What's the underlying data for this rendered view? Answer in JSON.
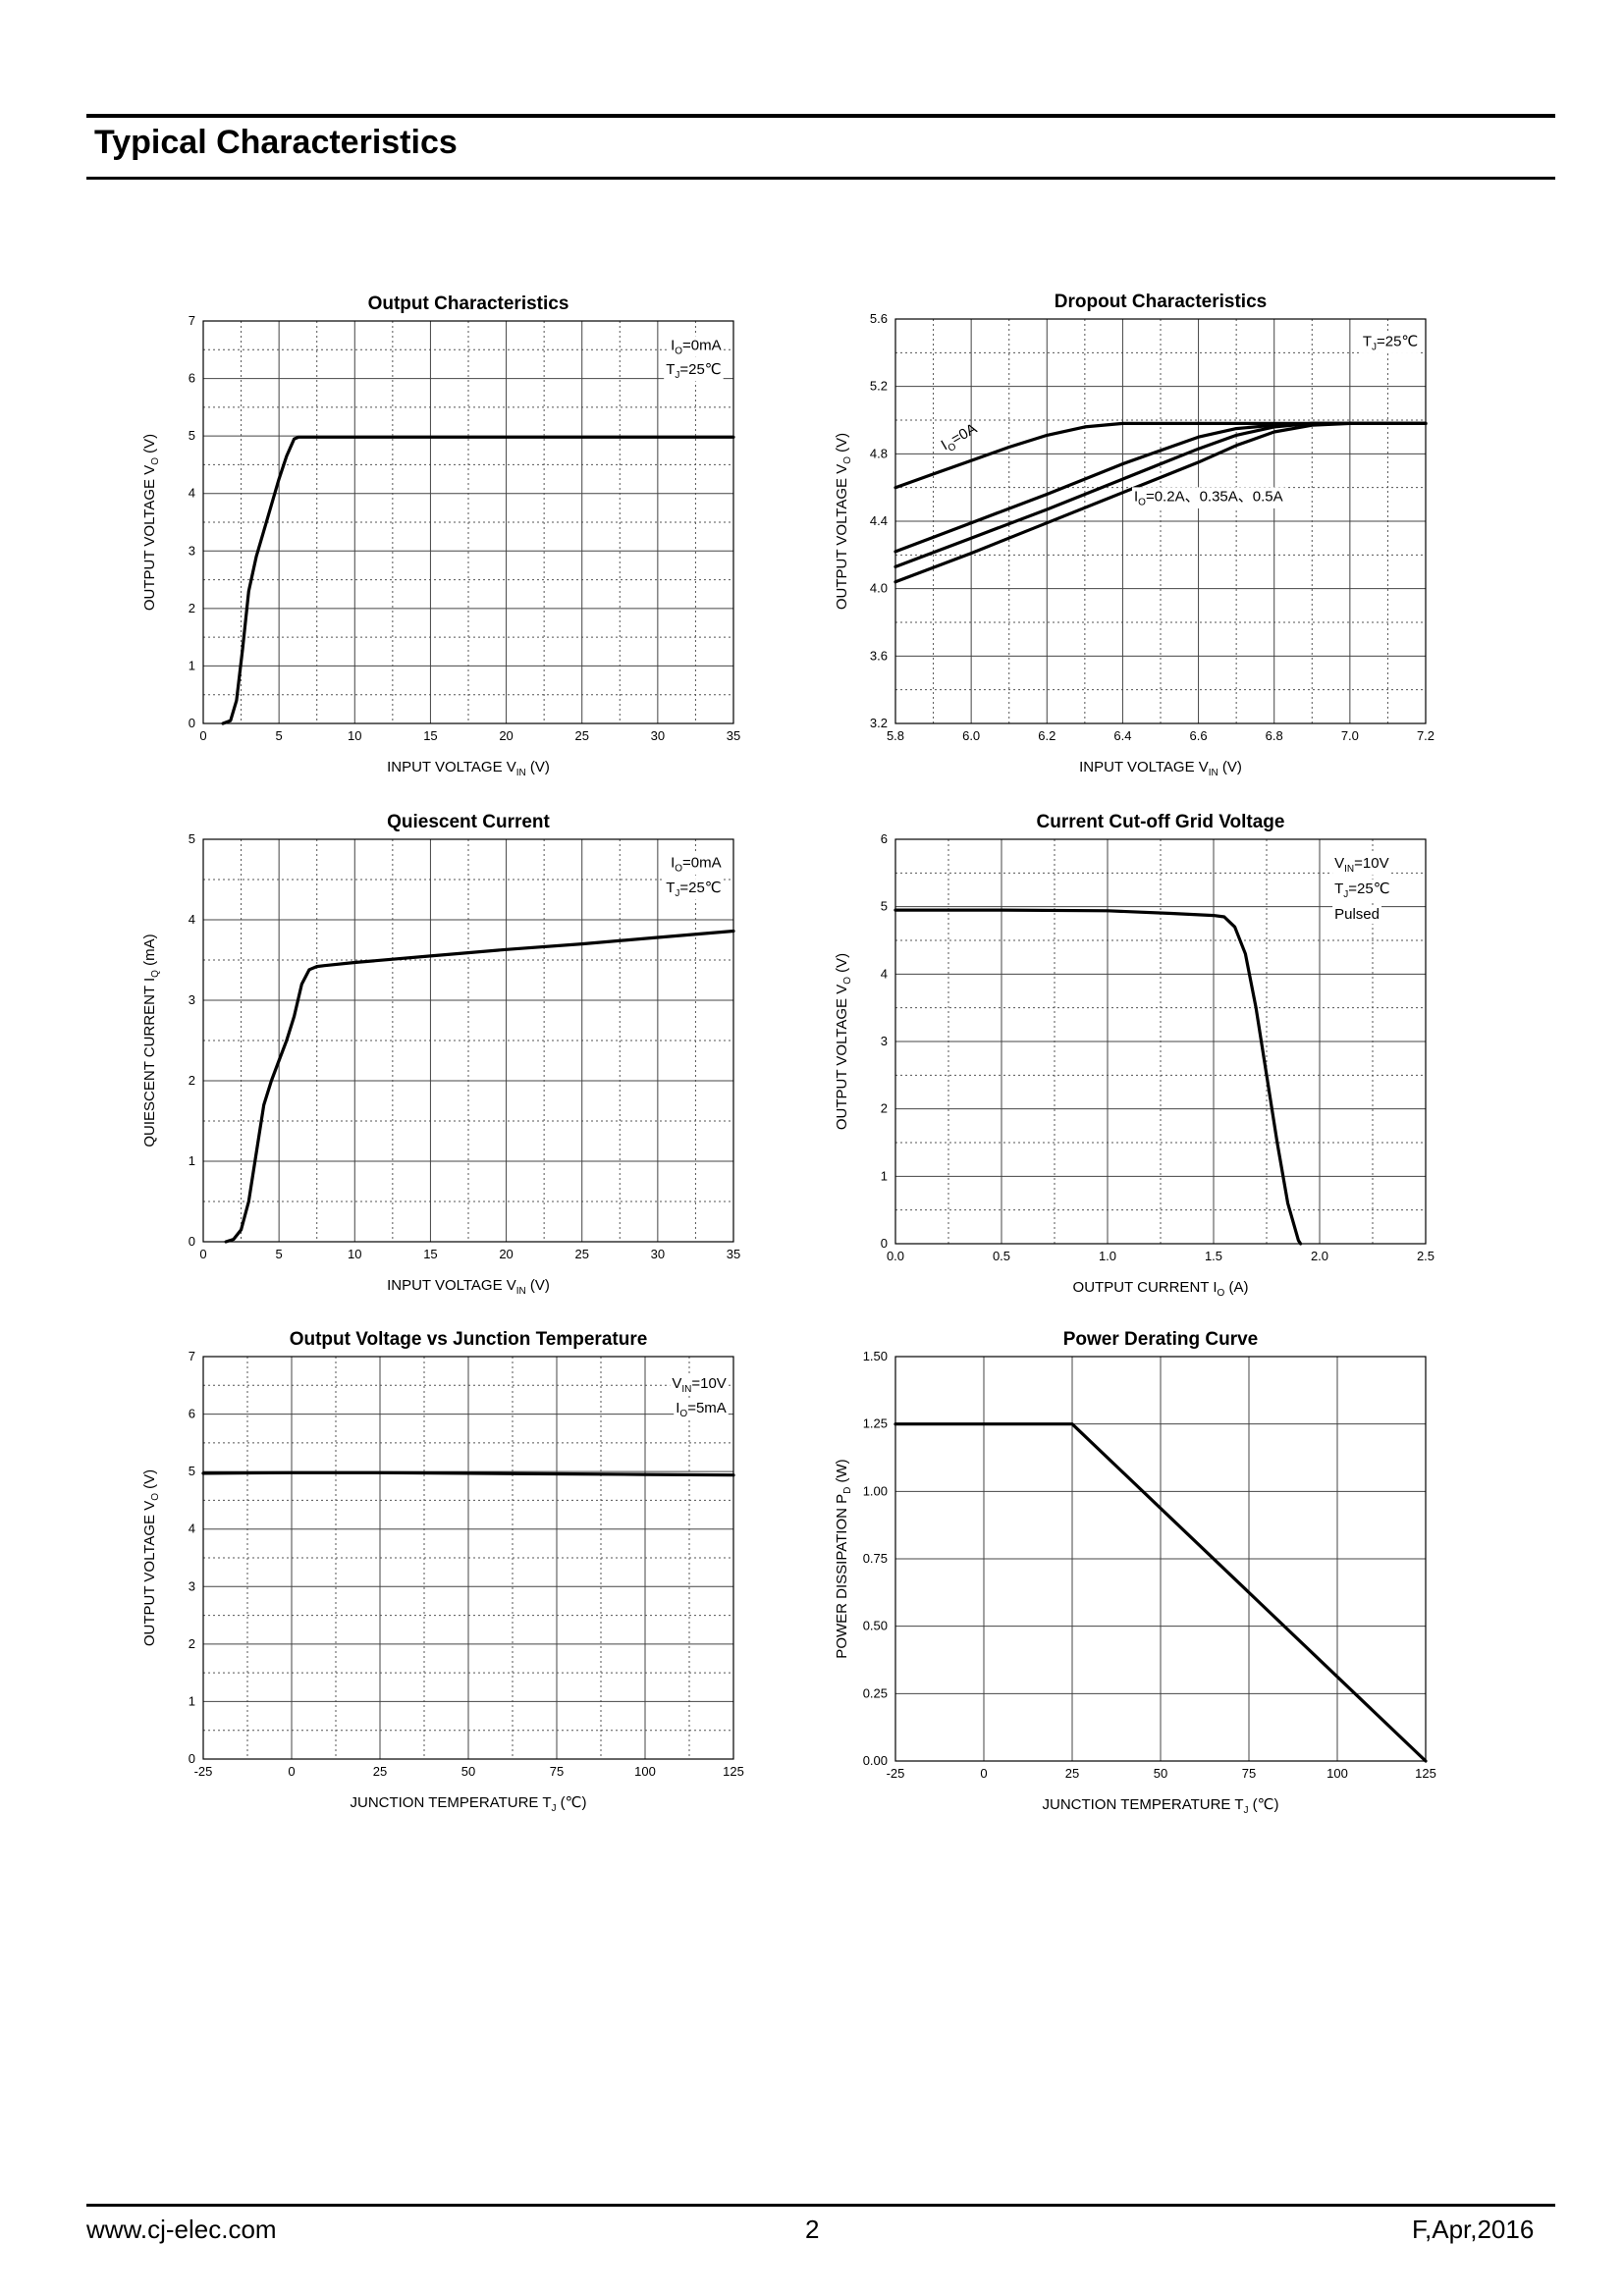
{
  "header": {
    "title": "Typical Characteristics"
  },
  "footer": {
    "website": "www.cj-elec.com",
    "page": "2",
    "revision": "F,Apr,2016"
  },
  "chart_data": [
    {
      "id": "output-characteristics",
      "type": "line",
      "title": "Output    Characteristics",
      "xlabel": {
        "text": "INPUT VOLTAGE   V",
        "sub": "IN",
        "unit": "(V)"
      },
      "ylabel": {
        "text": "OUTPUT VOLTAGE   V",
        "sub": "O",
        "unit": "(V)"
      },
      "xlim": [
        0,
        35
      ],
      "ylim": [
        0,
        7
      ],
      "xticks": [
        0,
        5,
        10,
        15,
        20,
        25,
        30,
        35
      ],
      "yticks": [
        0,
        1,
        2,
        3,
        4,
        5,
        6,
        7
      ],
      "tick_decimals": [
        0,
        0
      ],
      "grid": true,
      "annotations": [
        {
          "parts": [
            [
              "I",
              ""
            ],
            [
              "O",
              "sub"
            ],
            [
              "=0mA",
              ""
            ]
          ],
          "x": 34.2,
          "y": 6.5,
          "anchor": "end"
        },
        {
          "parts": [
            [
              "T",
              ""
            ],
            [
              "J",
              "sub"
            ],
            [
              "=25℃",
              ""
            ]
          ],
          "x": 34.2,
          "y": 6.08,
          "anchor": "end"
        }
      ],
      "series": [
        {
          "x": [
            1.3,
            1.8,
            2.2,
            2.6,
            3.0,
            3.5,
            4.0,
            4.5,
            5.0,
            5.5,
            6.0,
            6.3,
            7,
            10,
            20,
            30,
            35
          ],
          "y": [
            0,
            0.05,
            0.4,
            1.3,
            2.3,
            2.9,
            3.35,
            3.8,
            4.25,
            4.65,
            4.95,
            4.98,
            4.98,
            4.98,
            4.98,
            4.98,
            4.98
          ]
        }
      ]
    },
    {
      "id": "dropout-characteristics",
      "type": "line",
      "title": "Dropout Characteristics",
      "xlabel": {
        "text": "INPUT VOLTAGE   V",
        "sub": "IN",
        "unit": "(V)"
      },
      "ylabel": {
        "text": "OUTPUT VOLTAGE   V",
        "sub": "O",
        "unit": "(V)"
      },
      "xlim": [
        5.8,
        7.2
      ],
      "ylim": [
        3.2,
        5.6
      ],
      "xticks": [
        5.8,
        6.0,
        6.2,
        6.4,
        6.6,
        6.8,
        7.0,
        7.2
      ],
      "yticks": [
        3.2,
        3.6,
        4.0,
        4.4,
        4.8,
        5.2,
        5.6
      ],
      "tick_decimals": [
        1,
        1
      ],
      "grid": true,
      "annotations": [
        {
          "parts": [
            [
              "T",
              ""
            ],
            [
              "J",
              "sub"
            ],
            [
              "=25℃",
              ""
            ]
          ],
          "x": 7.18,
          "y": 5.44,
          "anchor": "end"
        },
        {
          "parts": [
            [
              "I",
              ""
            ],
            [
              "O",
              "sub"
            ],
            [
              "=0A",
              ""
            ]
          ],
          "x": 5.93,
          "y": 4.82,
          "anchor": "start",
          "rotate": -30
        },
        {
          "parts": [
            [
              "I",
              ""
            ],
            [
              "O",
              "sub"
            ],
            [
              "=0.2A、0.35A、0.5A",
              ""
            ]
          ],
          "x": 6.43,
          "y": 4.52,
          "anchor": "start"
        }
      ],
      "series": [
        {
          "name": "I=0A",
          "x": [
            5.8,
            5.9,
            6.0,
            6.1,
            6.2,
            6.3,
            6.4,
            6.6,
            6.8,
            7.0,
            7.2
          ],
          "y": [
            4.6,
            4.68,
            4.76,
            4.84,
            4.91,
            4.96,
            4.98,
            4.98,
            4.98,
            4.98,
            4.98
          ]
        },
        {
          "x": [
            5.8,
            6.0,
            6.2,
            6.4,
            6.5,
            6.6,
            6.7,
            6.8,
            6.9,
            7.0,
            7.2
          ],
          "y": [
            4.22,
            4.39,
            4.56,
            4.74,
            4.82,
            4.9,
            4.95,
            4.97,
            4.98,
            4.98,
            4.98
          ]
        },
        {
          "x": [
            5.8,
            6.0,
            6.2,
            6.4,
            6.5,
            6.6,
            6.7,
            6.8,
            6.9,
            7.0,
            7.2
          ],
          "y": [
            4.13,
            4.3,
            4.47,
            4.65,
            4.74,
            4.83,
            4.91,
            4.96,
            4.98,
            4.98,
            4.98
          ]
        },
        {
          "x": [
            5.8,
            6.0,
            6.2,
            6.4,
            6.5,
            6.6,
            6.7,
            6.8,
            6.9,
            7.0,
            7.2
          ],
          "y": [
            4.04,
            4.21,
            4.39,
            4.57,
            4.66,
            4.75,
            4.85,
            4.93,
            4.97,
            4.98,
            4.98
          ]
        }
      ]
    },
    {
      "id": "quiescent-current",
      "type": "line",
      "title": "Quiescent Current",
      "xlabel": {
        "text": "INPUT VOLTAGE   V",
        "sub": "IN",
        "unit": "(V)"
      },
      "ylabel": {
        "text": "QUIESCENT CURRENT   I",
        "sub": "Q",
        "unit": "(mA)"
      },
      "xlim": [
        0,
        35
      ],
      "ylim": [
        0,
        5
      ],
      "xticks": [
        0,
        5,
        10,
        15,
        20,
        25,
        30,
        35
      ],
      "yticks": [
        0,
        1,
        2,
        3,
        4,
        5
      ],
      "tick_decimals": [
        0,
        0
      ],
      "grid": true,
      "annotations": [
        {
          "parts": [
            [
              "I",
              ""
            ],
            [
              "O",
              "sub"
            ],
            [
              "=0mA",
              ""
            ]
          ],
          "x": 34.2,
          "y": 4.65,
          "anchor": "end"
        },
        {
          "parts": [
            [
              "T",
              ""
            ],
            [
              "J",
              "sub"
            ],
            [
              "=25℃",
              ""
            ]
          ],
          "x": 34.2,
          "y": 4.34,
          "anchor": "end"
        }
      ],
      "series": [
        {
          "x": [
            1.5,
            2.0,
            2.5,
            3.0,
            3.5,
            4.0,
            4.5,
            5.0,
            5.5,
            6.0,
            6.5,
            7.0,
            7.5,
            8,
            10,
            15,
            20,
            25,
            30,
            35
          ],
          "y": [
            0,
            0.03,
            0.15,
            0.5,
            1.1,
            1.7,
            2.0,
            2.25,
            2.5,
            2.8,
            3.2,
            3.38,
            3.42,
            3.43,
            3.47,
            3.55,
            3.63,
            3.7,
            3.78,
            3.86
          ]
        }
      ]
    },
    {
      "id": "current-cutoff",
      "type": "line",
      "title": "Current  Cut-off Grid Voltage",
      "xlabel": {
        "text": "OUTPUT CURRENT   I",
        "sub": "O",
        "unit": "(A)"
      },
      "ylabel": {
        "text": "OUTPUT VOLTAGE   V",
        "sub": "O",
        "unit": "(V)"
      },
      "xlim": [
        0,
        2.5
      ],
      "ylim": [
        0,
        6
      ],
      "xticks": [
        0,
        0.5,
        1.0,
        1.5,
        2.0,
        2.5
      ],
      "yticks": [
        0,
        1,
        2,
        3,
        4,
        5,
        6
      ],
      "tick_decimals": [
        1,
        0
      ],
      "grid": true,
      "annotations": [
        {
          "parts": [
            [
              "V",
              ""
            ],
            [
              "IN",
              "sub"
            ],
            [
              "=10V",
              ""
            ]
          ],
          "x": 2.07,
          "y": 5.58,
          "anchor": "start"
        },
        {
          "parts": [
            [
              "T",
              ""
            ],
            [
              "J",
              "sub"
            ],
            [
              "=25℃",
              ""
            ]
          ],
          "x": 2.07,
          "y": 5.2,
          "anchor": "start"
        },
        {
          "parts": [
            [
              "Pulsed",
              ""
            ]
          ],
          "x": 2.07,
          "y": 4.82,
          "anchor": "start"
        }
      ],
      "series": [
        {
          "x": [
            0,
            0.5,
            1.0,
            1.3,
            1.5,
            1.55,
            1.6,
            1.65,
            1.7,
            1.75,
            1.8,
            1.85,
            1.9,
            1.91
          ],
          "y": [
            4.95,
            4.95,
            4.94,
            4.9,
            4.87,
            4.85,
            4.7,
            4.3,
            3.5,
            2.5,
            1.5,
            0.6,
            0.05,
            0
          ]
        }
      ]
    },
    {
      "id": "output-vs-temp",
      "type": "line",
      "title": "Output Voltage vs Junction Temperature",
      "xlabel": {
        "text": "JUNCTION TEMPERATURE   T",
        "sub": "J",
        "unit": "(℃)"
      },
      "ylabel": {
        "text": "OUTPUT VOLTAGE   V",
        "sub": "O",
        "unit": "(V)"
      },
      "xlim": [
        -25,
        125
      ],
      "ylim": [
        0,
        7
      ],
      "xticks": [
        -25,
        0,
        25,
        50,
        75,
        100,
        125
      ],
      "yticks": [
        0,
        1,
        2,
        3,
        4,
        5,
        6,
        7
      ],
      "tick_decimals": [
        0,
        0
      ],
      "grid": true,
      "annotations": [
        {
          "parts": [
            [
              "V",
              ""
            ],
            [
              "IN",
              "sub"
            ],
            [
              "=10V",
              ""
            ]
          ],
          "x": 123,
          "y": 6.45,
          "anchor": "end"
        },
        {
          "parts": [
            [
              "I",
              ""
            ],
            [
              "O",
              "sub"
            ],
            [
              "=5mA",
              ""
            ]
          ],
          "x": 123,
          "y": 6.03,
          "anchor": "end"
        }
      ],
      "series": [
        {
          "x": [
            -25,
            0,
            25,
            50,
            75,
            100,
            125
          ],
          "y": [
            4.97,
            4.98,
            4.98,
            4.97,
            4.96,
            4.95,
            4.94
          ]
        }
      ]
    },
    {
      "id": "power-derating",
      "type": "line",
      "title": "Power Derating Curve",
      "xlabel": {
        "text": "JUNCTION TEMPERATURE   T",
        "sub": "J",
        "unit": "(℃)"
      },
      "ylabel": {
        "text": "POWER DISSIPATION   P",
        "sub": "D",
        "unit": "(W)"
      },
      "xlim": [
        -25,
        125
      ],
      "ylim": [
        0,
        1.5
      ],
      "xticks": [
        -25,
        0,
        25,
        50,
        75,
        100,
        125
      ],
      "yticks": [
        0,
        0.25,
        0.5,
        0.75,
        1.0,
        1.25,
        1.5
      ],
      "tick_decimals": [
        0,
        2
      ],
      "grid": true,
      "minor_grid": false,
      "annotations": [],
      "series": [
        {
          "x": [
            -25,
            25,
            125
          ],
          "y": [
            1.25,
            1.25,
            0
          ]
        }
      ]
    }
  ]
}
